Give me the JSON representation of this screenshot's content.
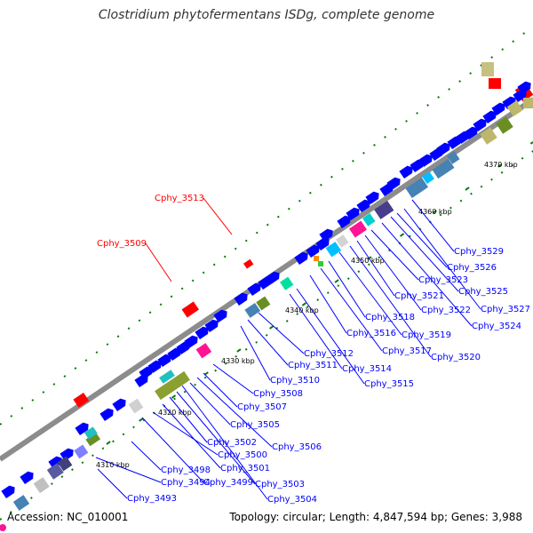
{
  "title": "Clostridium phytofermentans ISDg, complete genome",
  "footer": {
    "accession": "Accession: NC_010001",
    "summary": "Topology: circular; Length: 4,847,594 bp; Genes: 3,988"
  },
  "colors": {
    "backbone": "#808080",
    "cds_blue": "#0000ff",
    "label_blue": "#0000ff",
    "label_red": "#ff0000",
    "tick_green": "#006400"
  },
  "tick_labels": [
    "4310 kbp",
    "4320 kbp",
    "4330 kbp",
    "4340 kbp",
    "4350 kbp",
    "4360 kbp",
    "4370 kbp"
  ],
  "gene_labels": [
    {
      "text": "Cphy_3493",
      "color": "blue"
    },
    {
      "text": "Cphy_3494",
      "color": "blue"
    },
    {
      "text": "Cphy_3498",
      "color": "blue"
    },
    {
      "text": "Cphy_3499",
      "color": "blue"
    },
    {
      "text": "Cphy_3500",
      "color": "blue"
    },
    {
      "text": "Cphy_3501",
      "color": "blue"
    },
    {
      "text": "Cphy_3502",
      "color": "blue"
    },
    {
      "text": "Cphy_3503",
      "color": "blue"
    },
    {
      "text": "Cphy_3504",
      "color": "blue"
    },
    {
      "text": "Cphy_3505",
      "color": "blue"
    },
    {
      "text": "Cphy_3506",
      "color": "blue"
    },
    {
      "text": "Cphy_3507",
      "color": "blue"
    },
    {
      "text": "Cphy_3508",
      "color": "blue"
    },
    {
      "text": "Cphy_3509",
      "color": "red"
    },
    {
      "text": "Cphy_3510",
      "color": "blue"
    },
    {
      "text": "Cphy_3511",
      "color": "blue"
    },
    {
      "text": "Cphy_3512",
      "color": "blue"
    },
    {
      "text": "Cphy_3513",
      "color": "red"
    },
    {
      "text": "Cphy_3514",
      "color": "blue"
    },
    {
      "text": "Cphy_3515",
      "color": "blue"
    },
    {
      "text": "Cphy_3516",
      "color": "blue"
    },
    {
      "text": "Cphy_3517",
      "color": "blue"
    },
    {
      "text": "Cphy_3518",
      "color": "blue"
    },
    {
      "text": "Cphy_3519",
      "color": "blue"
    },
    {
      "text": "Cphy_3520",
      "color": "blue"
    },
    {
      "text": "Cphy_3521",
      "color": "blue"
    },
    {
      "text": "Cphy_3522",
      "color": "blue"
    },
    {
      "text": "Cphy_3523",
      "color": "blue"
    },
    {
      "text": "Cphy_3524",
      "color": "blue"
    },
    {
      "text": "Cphy_3525",
      "color": "blue"
    },
    {
      "text": "Cphy_3526",
      "color": "blue"
    },
    {
      "text": "Cphy_3527",
      "color": "blue"
    },
    {
      "text": "Cphy_3529",
      "color": "blue"
    }
  ]
}
